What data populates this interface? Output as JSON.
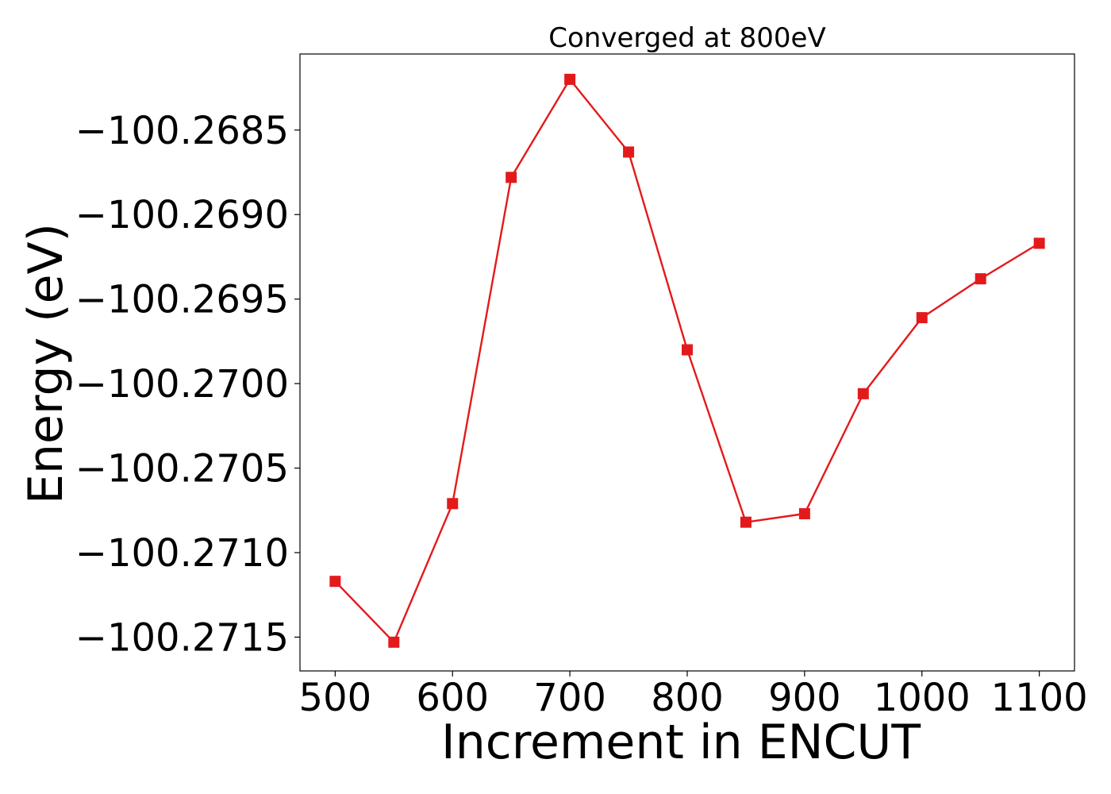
{
  "chart_data": {
    "type": "line",
    "title": "Converged at 800eV",
    "xlabel": "Increment in ENCUT",
    "ylabel": "Energy (eV)",
    "x": [
      500,
      550,
      600,
      650,
      700,
      750,
      800,
      850,
      900,
      950,
      1000,
      1050,
      1100
    ],
    "series": [
      {
        "values": [
          -100.27117,
          -100.27153,
          -100.27071,
          -100.26878,
          -100.2682,
          -100.26863,
          -100.2698,
          -100.27082,
          -100.27077,
          -100.27006,
          -100.26961,
          -100.26938,
          -100.26917
        ],
        "color": "#e31a1c",
        "marker": "square"
      }
    ],
    "xlim": [
      470,
      1130
    ],
    "ylim": [
      -100.2717,
      -100.26805
    ],
    "xticks": [
      500,
      600,
      700,
      800,
      900,
      1000,
      1100
    ],
    "xtick_labels": [
      "500",
      "600",
      "700",
      "800",
      "900",
      "1000",
      "1100"
    ],
    "yticks": [
      -100.2685,
      -100.269,
      -100.2695,
      -100.27,
      -100.2705,
      -100.271,
      -100.2715
    ],
    "ytick_labels": [
      "−100.2685",
      "−100.2690",
      "−100.2695",
      "−100.2700",
      "−100.2705",
      "−100.2710",
      "−100.2715"
    ],
    "grid": false,
    "legend": false
  }
}
